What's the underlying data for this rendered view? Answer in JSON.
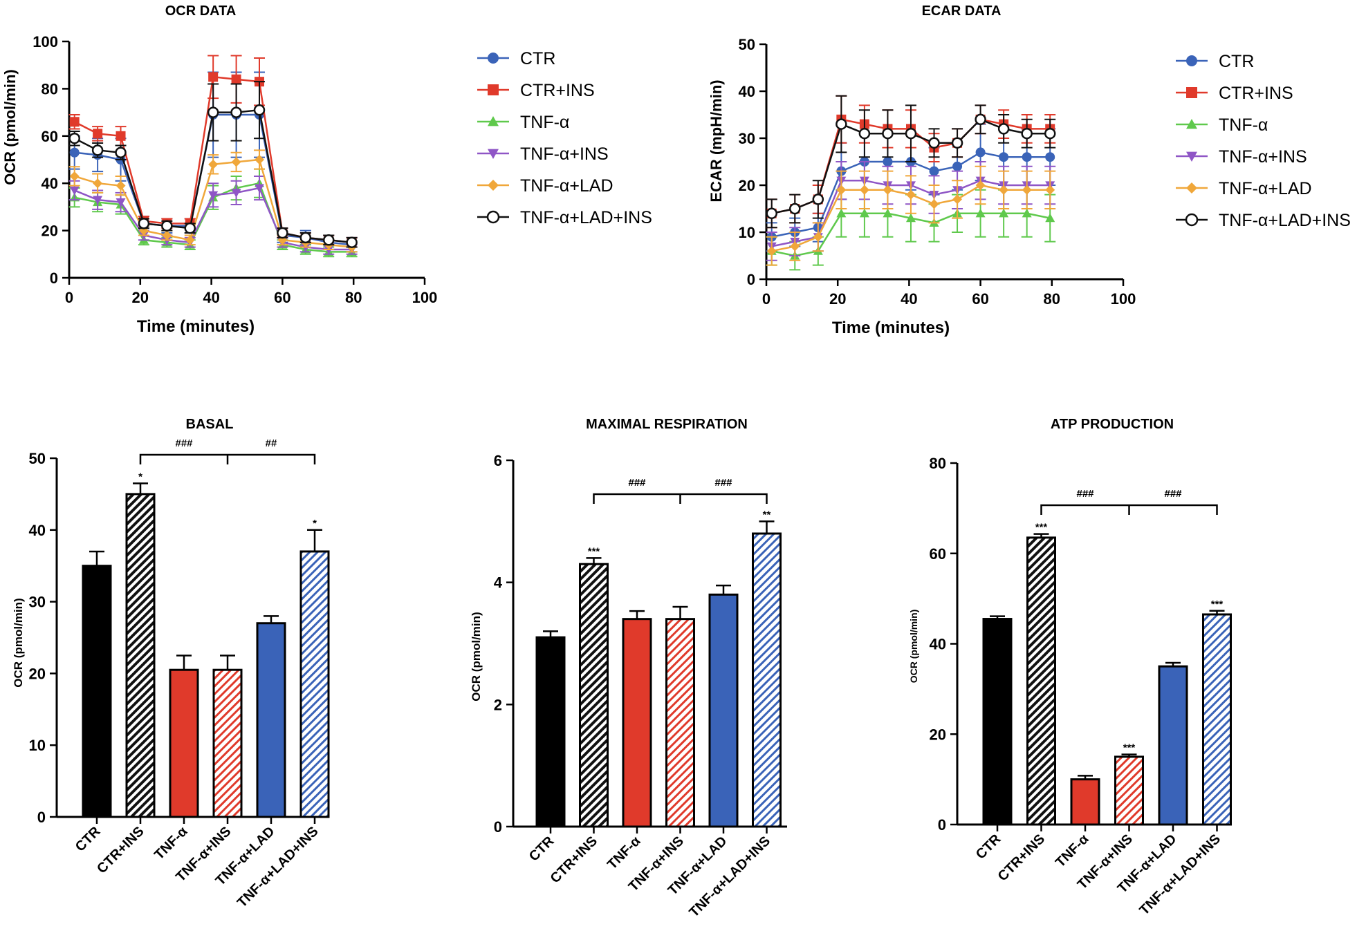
{
  "chart_data": [
    {
      "id": "ocr",
      "type": "line",
      "title": "OCR DATA",
      "xlabel": "Time (minutes)",
      "ylabel": "OCR (pmol/min)",
      "xlim": [
        0,
        100
      ],
      "ylim": [
        0,
        100
      ],
      "xticks": [
        0,
        20,
        40,
        60,
        80,
        100
      ],
      "yticks": [
        0,
        20,
        40,
        60,
        80,
        100
      ],
      "x": [
        1.5,
        8,
        14.5,
        21,
        27.5,
        34,
        40.5,
        47,
        53.5,
        60,
        66.5,
        73,
        79.5
      ],
      "legend_position": "right",
      "series": [
        {
          "name": "CTR",
          "color": "#3a63b8",
          "marker": "circle",
          "values": [
            53,
            52,
            50,
            23,
            22,
            22,
            69,
            69,
            69,
            18,
            17,
            15,
            14
          ],
          "errors": [
            7,
            7,
            9,
            3,
            3,
            3,
            18,
            18,
            18,
            3,
            3,
            3,
            3
          ]
        },
        {
          "name": "CTR+INS",
          "color": "#e03a2b",
          "marker": "square",
          "values": [
            66,
            61,
            60,
            24,
            23,
            23,
            85,
            84,
            83,
            19,
            17,
            16,
            15
          ],
          "errors": [
            3,
            3,
            4,
            2,
            2,
            2,
            9,
            10,
            10,
            2,
            2,
            2,
            2
          ]
        },
        {
          "name": "TNF-α",
          "color": "#5fc94c",
          "marker": "triangle-up",
          "values": [
            34,
            32,
            31,
            16,
            15,
            14,
            34,
            38,
            40,
            14,
            12,
            11,
            11
          ],
          "errors": [
            4,
            4,
            4,
            2,
            2,
            2,
            5,
            5,
            6,
            2,
            2,
            2,
            2
          ]
        },
        {
          "name": "TNF-α+INS",
          "color": "#8f56c6",
          "marker": "triangle-down",
          "values": [
            37,
            33,
            32,
            18,
            16,
            15,
            35,
            36,
            38,
            15,
            13,
            12,
            12
          ],
          "errors": [
            4,
            4,
            4,
            2,
            2,
            2,
            5,
            5,
            5,
            2,
            2,
            2,
            2
          ]
        },
        {
          "name": "TNF-α+LAD",
          "color": "#f0a73a",
          "marker": "diamond",
          "values": [
            43,
            40,
            39,
            20,
            18,
            16,
            48,
            49,
            50,
            16,
            15,
            14,
            13
          ],
          "errors": [
            4,
            4,
            4,
            2,
            2,
            2,
            4,
            4,
            4,
            2,
            2,
            2,
            2
          ]
        },
        {
          "name": "TNF-α+LAD+INS",
          "color": "#111111",
          "marker": "circle-open",
          "values": [
            59,
            54,
            53,
            23,
            22,
            21,
            70,
            70,
            71,
            19,
            17,
            16,
            15
          ],
          "errors": [
            3,
            3,
            3,
            2,
            2,
            2,
            12,
            12,
            12,
            2,
            2,
            2,
            2
          ]
        }
      ]
    },
    {
      "id": "ecar",
      "type": "line",
      "title": "ECAR DATA",
      "xlabel": "Time (minutes)",
      "ylabel": "ECAR (mpH/min)",
      "xlim": [
        0,
        100
      ],
      "ylim": [
        0,
        50
      ],
      "xticks": [
        0,
        20,
        40,
        60,
        80,
        100
      ],
      "yticks": [
        0,
        10,
        20,
        30,
        40,
        50
      ],
      "x": [
        1.5,
        8,
        14.5,
        21,
        27.5,
        34,
        40.5,
        47,
        53.5,
        60,
        66.5,
        73,
        79.5
      ],
      "legend_position": "right",
      "series": [
        {
          "name": "CTR",
          "color": "#3a63b8",
          "marker": "circle",
          "values": [
            9,
            10,
            11,
            23,
            25,
            25,
            25,
            23,
            24,
            27,
            26,
            26,
            26
          ],
          "errors": [
            3,
            3,
            3,
            6,
            6,
            6,
            6,
            5,
            5,
            6,
            6,
            6,
            6
          ]
        },
        {
          "name": "CTR+INS",
          "color": "#e03a2b",
          "marker": "square",
          "values": [
            14,
            15,
            17,
            34,
            33,
            32,
            32,
            28,
            29,
            34,
            33,
            32,
            32
          ],
          "errors": [
            3,
            3,
            3,
            5,
            4,
            4,
            4,
            3,
            3,
            3,
            3,
            3,
            3
          ]
        },
        {
          "name": "TNF-α",
          "color": "#5fc94c",
          "marker": "triangle-up",
          "values": [
            6,
            5,
            6,
            14,
            14,
            14,
            13,
            12,
            14,
            14,
            14,
            14,
            13
          ],
          "errors": [
            3,
            3,
            3,
            5,
            5,
            5,
            5,
            4,
            4,
            5,
            5,
            5,
            5
          ]
        },
        {
          "name": "TNF-α+INS",
          "color": "#8f56c6",
          "marker": "triangle-down",
          "values": [
            7,
            8,
            9,
            21,
            21,
            20,
            20,
            18,
            19,
            21,
            20,
            20,
            20
          ],
          "errors": [
            3,
            3,
            3,
            4,
            4,
            4,
            4,
            4,
            4,
            4,
            4,
            4,
            4
          ]
        },
        {
          "name": "TNF-α+LAD",
          "color": "#f0a73a",
          "marker": "diamond",
          "values": [
            6,
            7,
            9,
            19,
            19,
            19,
            18,
            16,
            17,
            20,
            19,
            19,
            19
          ],
          "errors": [
            3,
            3,
            3,
            4,
            4,
            4,
            4,
            4,
            4,
            4,
            4,
            4,
            4
          ]
        },
        {
          "name": "TNF-α+LAD+INS",
          "color": "#111111",
          "marker": "circle-open",
          "values": [
            14,
            15,
            17,
            33,
            31,
            31,
            31,
            29,
            29,
            34,
            32,
            31,
            31
          ],
          "errors": [
            3,
            3,
            4,
            6,
            5,
            5,
            6,
            3,
            3,
            3,
            3,
            3,
            3
          ]
        }
      ]
    },
    {
      "id": "basal",
      "type": "bar",
      "title": "BASAL",
      "ylabel": "OCR (pmol/min)",
      "ylim": [
        0,
        50
      ],
      "yticks": [
        0,
        10,
        20,
        30,
        40,
        50
      ],
      "categories": [
        "CTR",
        "CTR+INS",
        "TNF-α",
        "TNF-α+INS",
        "TNF-α+LAD",
        "TNF-α+LAD+INS"
      ],
      "values": [
        35,
        45,
        20.5,
        20.5,
        27,
        37
      ],
      "errors": [
        2,
        1.5,
        2,
        2,
        1,
        3
      ],
      "colors": [
        "#000000",
        "#000000",
        "#e03a2b",
        "#e03a2b",
        "#3a63b8",
        "#3a63b8"
      ],
      "hatched": [
        false,
        true,
        false,
        true,
        false,
        true
      ],
      "sig_labels": [
        "",
        "*",
        "",
        "",
        "",
        "*"
      ],
      "bracket_labels": [
        "###",
        "##"
      ]
    },
    {
      "id": "maximal",
      "type": "bar",
      "title": "MAXIMAL RESPIRATION",
      "ylabel": "OCR (pmol/min)",
      "ylim": [
        0,
        6
      ],
      "yticks": [
        0,
        2,
        4,
        6
      ],
      "categories": [
        "CTR",
        "CTR+INS",
        "TNF-α",
        "TNF-α+INS",
        "TNF-α+LAD",
        "TNF-α+LAD+INS"
      ],
      "values": [
        3.1,
        4.3,
        3.4,
        3.4,
        3.8,
        4.8
      ],
      "errors": [
        0.1,
        0.1,
        0.13,
        0.2,
        0.15,
        0.2
      ],
      "colors": [
        "#000000",
        "#000000",
        "#e03a2b",
        "#e03a2b",
        "#3a63b8",
        "#3a63b8"
      ],
      "hatched": [
        false,
        true,
        false,
        true,
        false,
        true
      ],
      "sig_labels": [
        "",
        "***",
        "",
        "",
        "",
        "**"
      ],
      "bracket_labels": [
        "###",
        "###"
      ]
    },
    {
      "id": "atp",
      "type": "bar",
      "title": "ATP PRODUCTION",
      "ylabel": "OCR (pmol/min)",
      "ylim": [
        0,
        80
      ],
      "yticks": [
        0,
        20,
        40,
        60,
        80
      ],
      "categories": [
        "CTR",
        "CTR+INS",
        "TNF-α",
        "TNF-α+INS",
        "TNF-α+LAD",
        "TNF-α+LAD+INS"
      ],
      "values": [
        45.5,
        63.5,
        10,
        15,
        35,
        46.5
      ],
      "errors": [
        0.6,
        0.8,
        0.8,
        0.5,
        0.8,
        0.8
      ],
      "colors": [
        "#000000",
        "#000000",
        "#e03a2b",
        "#e03a2b",
        "#3a63b8",
        "#3a63b8"
      ],
      "hatched": [
        false,
        true,
        false,
        true,
        false,
        true
      ],
      "sig_labels": [
        "",
        "***",
        "",
        "***",
        "",
        "***"
      ],
      "bracket_labels": [
        "###",
        "###"
      ]
    }
  ]
}
